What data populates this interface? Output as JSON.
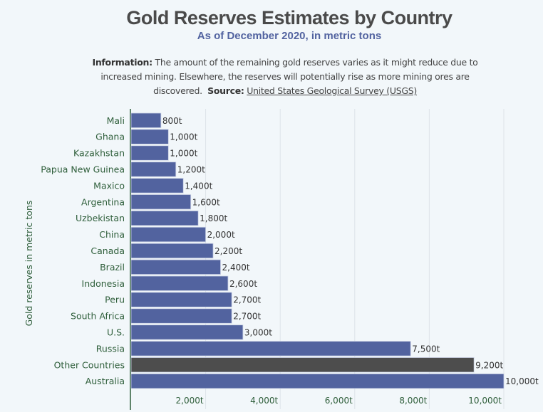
{
  "header": {
    "title": "Gold Reserves Estimates by Country",
    "subtitle": "As of December 2020, in metric tons",
    "info_label": "Information:",
    "info_text": "The amount of the remaining gold reserves varies as it might reduce due to increased mining. Elsewhere, the reserves will potentially rise as more mining ores are discovered.",
    "source_label": "Source:",
    "source_link": "United States Geological Survey (USGS)"
  },
  "chart_data": {
    "type": "bar",
    "orientation": "horizontal",
    "ylabel": "Gold reserves in metric tons",
    "categories": [
      "Mali",
      "Ghana",
      "Kazakhstan",
      "Papua New Guinea",
      "Maxico",
      "Argentina",
      "Uzbekistan",
      "China",
      "Canada",
      "Brazil",
      "Indonesia",
      "Peru",
      "South Africa",
      "U.S.",
      "Russia",
      "Other Countries",
      "Australia"
    ],
    "values": [
      800,
      1000,
      1000,
      1200,
      1400,
      1600,
      1800,
      2000,
      2200,
      2400,
      2600,
      2700,
      2700,
      3000,
      7500,
      9200,
      10000
    ],
    "data_labels": [
      "800t",
      "1,000t",
      "1,000t",
      "1,200t",
      "1,400t",
      "1,600t",
      "1,800t",
      "2,000t",
      "2,200t",
      "2,400t",
      "2,600t",
      "2,700t",
      "2,700t",
      "3,000t",
      "7,500t",
      "9,200t",
      "10,000t"
    ],
    "xlim": [
      0,
      10000
    ],
    "xticks": [
      2000,
      4000,
      6000,
      8000,
      10000
    ],
    "xtick_labels": [
      "2,000t",
      "4,000t",
      "6,000t",
      "8,000t",
      "10,000t"
    ],
    "grid": true,
    "colors": {
      "bar": "#52639f",
      "highlight": "#4d4d4d",
      "highlight_category": "Other Countries",
      "axis_text": "#2e5e3a"
    }
  }
}
